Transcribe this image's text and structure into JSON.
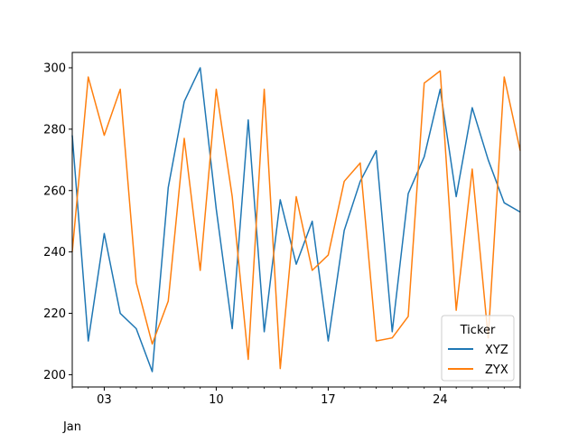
{
  "chart_data": {
    "type": "line",
    "x_tick_labels": [
      "03",
      "10",
      "17",
      "24"
    ],
    "x_tick_days": [
      3,
      10,
      17,
      24
    ],
    "x_sublabel": "Jan",
    "x": [
      1,
      2,
      3,
      4,
      5,
      6,
      7,
      8,
      9,
      10,
      11,
      12,
      13,
      14,
      15,
      16,
      17,
      18,
      19,
      20,
      21,
      22,
      23,
      24,
      25,
      26,
      27,
      28,
      29
    ],
    "xlim": [
      1,
      29
    ],
    "ylim": [
      196,
      305
    ],
    "y_ticks": [
      200,
      220,
      240,
      260,
      280,
      300
    ],
    "legend": {
      "title": "Ticker",
      "placement": "lower-right"
    },
    "grid": false,
    "series": [
      {
        "name": "XYZ",
        "color": "#1f77b4",
        "values": [
          278,
          211,
          246,
          220,
          215,
          201,
          261,
          289,
          300,
          254,
          215,
          283,
          214,
          257,
          236,
          250,
          211,
          247,
          263,
          273,
          214,
          259,
          271,
          293,
          258,
          287,
          270,
          256,
          253
        ]
      },
      {
        "name": "ZYX",
        "color": "#ff7f0e",
        "values": [
          240,
          297,
          278,
          293,
          230,
          210,
          224,
          277,
          234,
          293,
          258,
          205,
          293,
          202,
          258,
          234,
          239,
          263,
          269,
          211,
          212,
          219,
          295,
          299,
          221,
          267,
          212,
          297,
          273
        ]
      }
    ]
  }
}
